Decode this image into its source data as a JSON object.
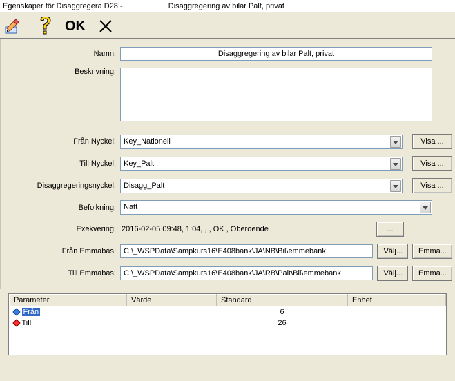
{
  "title_left": "Egenskaper för Disaggregera D28 -",
  "title_right": "Disaggregering av bilar Palt, privat",
  "toolbar": {
    "ok_label": "OK"
  },
  "labels": {
    "name": "Namn:",
    "description": "Beskrivning:",
    "from_key": "Från Nyckel:",
    "to_key": "Till Nyckel:",
    "disagg_key": "Disaggregeringsnyckel:",
    "population": "Befolkning:",
    "execution": "Exekvering:",
    "from_emma": "Från Emmabas:",
    "to_emma": "Till Emmabas:"
  },
  "values": {
    "name": "Disaggregering av bilar Palt, privat",
    "description": "",
    "from_key": "Key_Nationell",
    "to_key": "Key_Palt",
    "disagg_key": "Disagg_Palt",
    "population": "Natt",
    "execution": "2016-02-05 09:48, 1:04, , , OK , Oberoende",
    "from_emma": "C:\\_WSPData\\Sampkurs16\\E408bank\\JA\\NB\\Bil\\emmebank",
    "to_emma": "C:\\_WSPData\\Sampkurs16\\E408bank\\JA\\RB\\Palt\\Bil\\emmebank"
  },
  "buttons": {
    "show": "Visa ...",
    "dots": "...",
    "choose": "Välj...",
    "emma": "Emma..."
  },
  "table": {
    "headers": [
      "Parameter",
      "Värde",
      "Standard",
      "Enhet"
    ],
    "rows": [
      {
        "param": "Från",
        "value": "",
        "standard": "6",
        "unit": "",
        "diamond_color": "#3a7de0",
        "selected": true
      },
      {
        "param": "Till",
        "value": "",
        "standard": "26",
        "unit": "",
        "diamond_color": "#ff3030",
        "selected": false
      }
    ]
  }
}
